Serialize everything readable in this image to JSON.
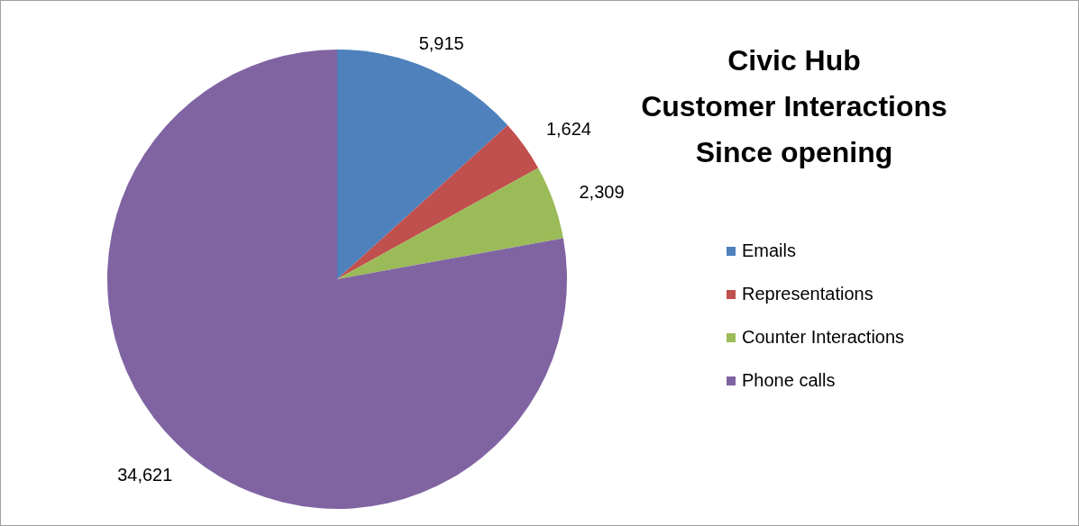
{
  "chart_data": {
    "type": "pie",
    "title": "Civic Hub\nCustomer Interactions\nSince opening",
    "categories": [
      "Emails",
      "Representations",
      "Counter Interactions",
      "Phone calls"
    ],
    "values": [
      5915,
      1624,
      2309,
      34621
    ],
    "colors": [
      "#4f81bd",
      "#c0504d",
      "#9bbb59",
      "#8064a2"
    ],
    "value_labels": [
      "5,915",
      "1,624",
      "2,309",
      "34,621"
    ],
    "legend": "right"
  }
}
